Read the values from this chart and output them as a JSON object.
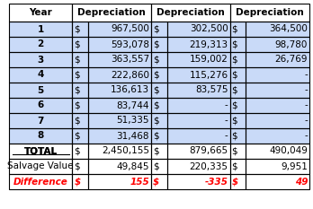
{
  "headers": [
    "Year",
    "Depreciation",
    "Depreciation",
    "Depreciation"
  ],
  "rows": [
    [
      "1",
      "$",
      "967,500",
      "$",
      "302,500",
      "$",
      "364,500"
    ],
    [
      "2",
      "$",
      "593,078",
      "$",
      "219,313",
      "$",
      "98,780"
    ],
    [
      "3",
      "$",
      "363,557",
      "$",
      "159,002",
      "$",
      "26,769"
    ],
    [
      "4",
      "$",
      "222,860",
      "$",
      "115,276",
      "$",
      "-"
    ],
    [
      "5",
      "$",
      "136,613",
      "$",
      "83,575",
      "$",
      "-"
    ],
    [
      "6",
      "$",
      "83,744",
      "$",
      "-",
      "$",
      "-"
    ],
    [
      "7",
      "$",
      "51,335",
      "$",
      "-",
      "$",
      "-"
    ],
    [
      "8",
      "$",
      "31,468",
      "$",
      "-",
      "$",
      "-"
    ]
  ],
  "total_row": [
    "TOTAL",
    "$",
    "2,450,155",
    "$",
    "879,665",
    "$",
    "490,049"
  ],
  "salvage_row": [
    "Salvage Value",
    "$",
    "49,845",
    "$",
    "220,335",
    "$",
    "9,951"
  ],
  "diff_row": [
    "Difference",
    "$",
    "155",
    "$",
    "-335",
    "$",
    "49"
  ],
  "header_bg": "#ffffff",
  "row_bg_blue": "#c9daf8",
  "row_bg_white": "#ffffff",
  "total_bg": "#ffffff",
  "salvage_bg": "#ffffff",
  "diff_bg": "#ffffff",
  "border_color": "#000000",
  "header_font_size": 7.5,
  "cell_font_size": 7.5,
  "diff_color": "#ff0000",
  "normal_color": "#000000"
}
